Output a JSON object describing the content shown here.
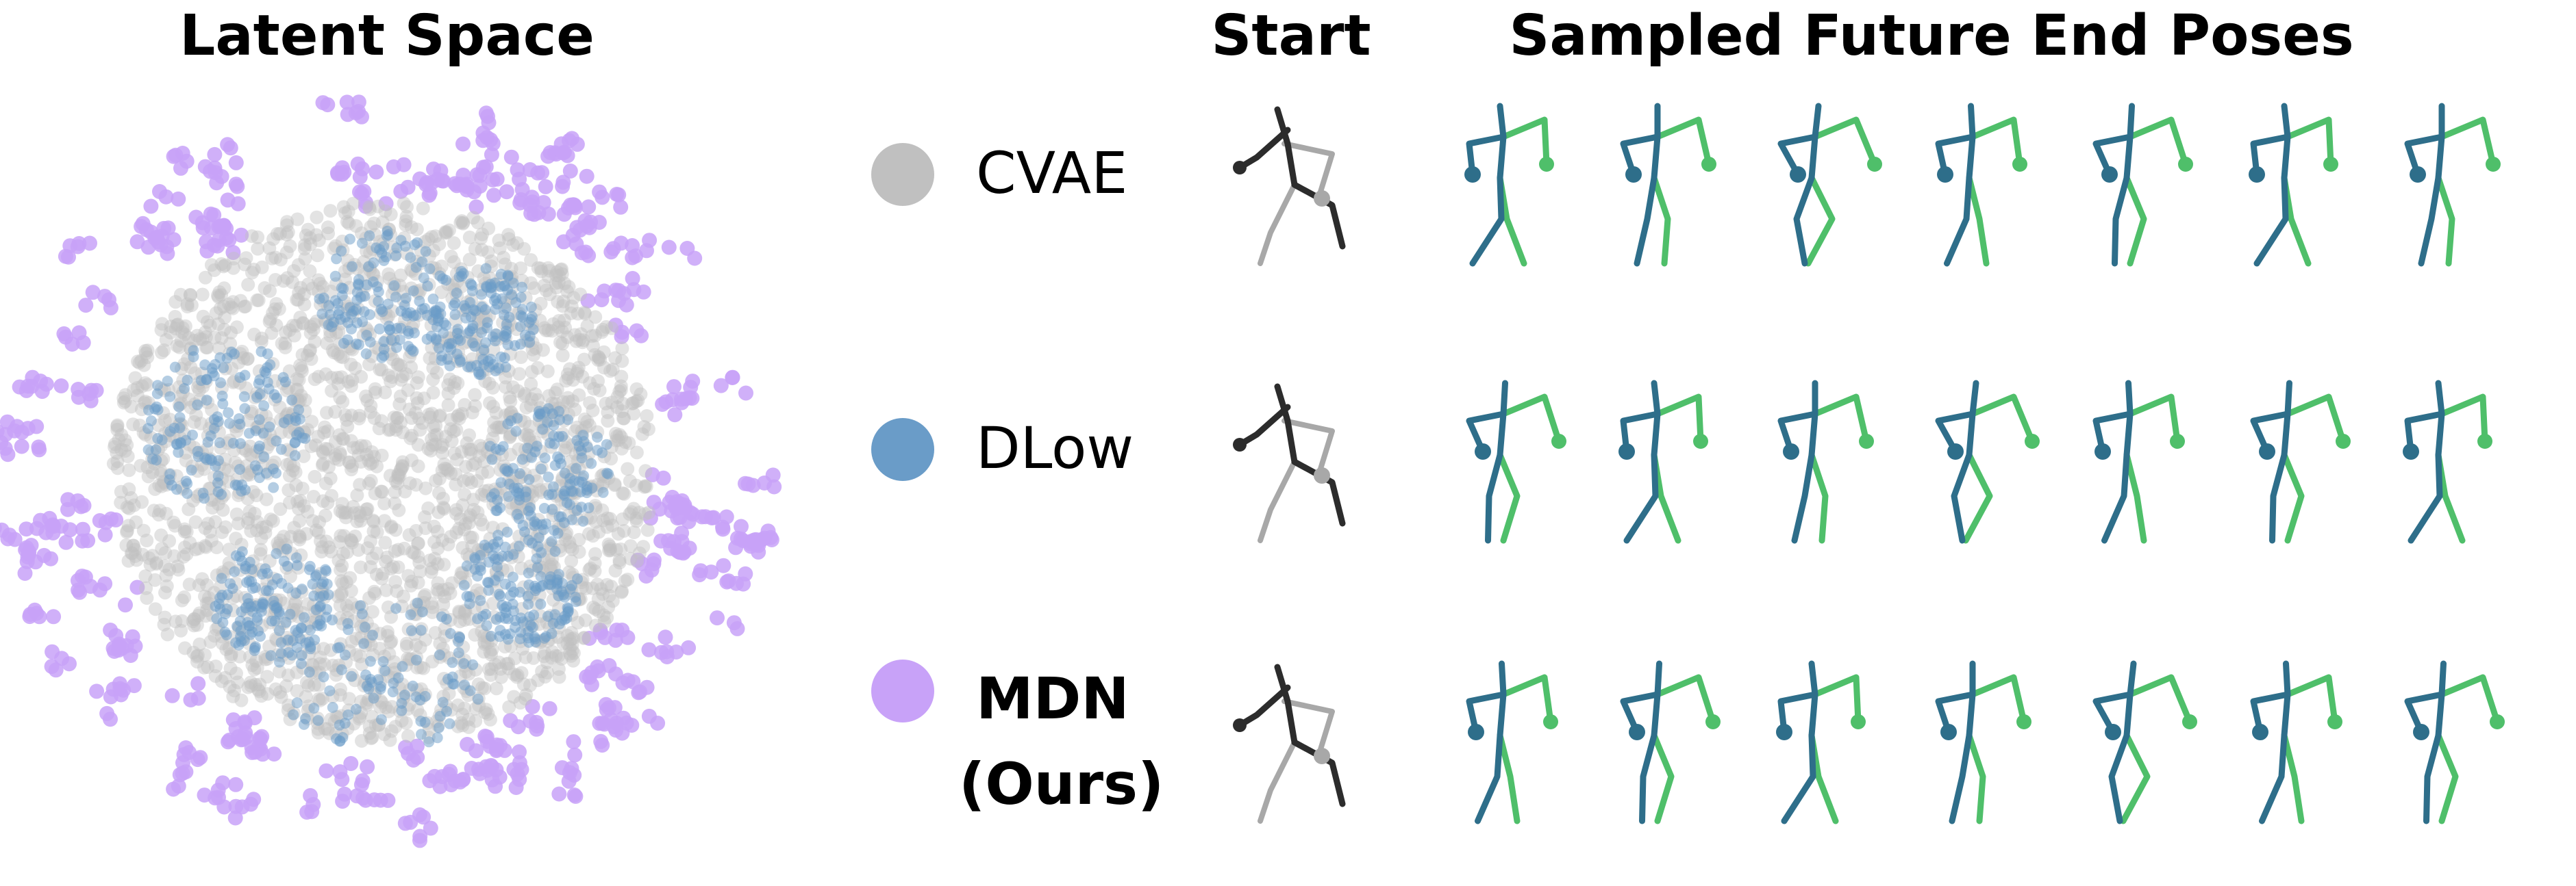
{
  "headers": {
    "latent": "Latent Space",
    "start": "Start",
    "samples": "Sampled Future End Poses"
  },
  "legend": [
    {
      "label": "CVAE",
      "bold": false,
      "color": "#c0c0c0"
    },
    {
      "label": "DLow",
      "bold": false,
      "color": "#6a9cc8"
    },
    {
      "label": "MDN",
      "label2": "(Ours)",
      "bold": true,
      "color": "#c8a2f8"
    }
  ],
  "colors": {
    "cvae": "#c0c0c0",
    "dlow": "#6a9cc8",
    "mdn": "#c8a2f8",
    "pose_right": "#2e6e8a",
    "pose_left": "#4fbf6a",
    "start_dark": "#2c2c2c",
    "start_light": "#a8a8a8"
  },
  "rows": [
    {
      "method": "CVAE",
      "sample_count": 7
    },
    {
      "method": "DLow",
      "sample_count": 7
    },
    {
      "method": "MDN",
      "sample_count": 7
    }
  ]
}
